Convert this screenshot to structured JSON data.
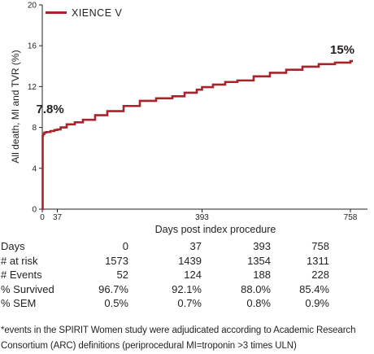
{
  "chart_data": {
    "type": "line",
    "title": "",
    "xlabel": "Days post index procedure",
    "ylabel": "All death, MI and TVR (%)",
    "xlim": [
      0,
      800
    ],
    "ylim": [
      0,
      20
    ],
    "y_ticks": [
      "0",
      "4",
      "8",
      "12",
      "16",
      "20"
    ],
    "x_ticks": [
      {
        "value": 0,
        "label": "0"
      },
      {
        "value": 37,
        "label": "37"
      },
      {
        "value": 393,
        "label": "393"
      },
      {
        "value": 758,
        "label": "758"
      }
    ],
    "legend": {
      "position": "top-left",
      "entries": [
        "XIENCE V"
      ]
    },
    "series": [
      {
        "name": "XIENCE V",
        "color": "#a8242a",
        "step": true,
        "x": [
          0,
          1,
          2,
          5,
          10,
          20,
          30,
          37,
          45,
          60,
          80,
          100,
          130,
          160,
          200,
          240,
          280,
          320,
          350,
          380,
          393,
          420,
          450,
          480,
          520,
          560,
          600,
          640,
          680,
          720,
          758
        ],
        "y": [
          0,
          7.2,
          7.35,
          7.5,
          7.55,
          7.65,
          7.75,
          7.8,
          8.0,
          8.3,
          8.5,
          8.75,
          9.2,
          9.6,
          10.1,
          10.6,
          10.85,
          11.05,
          11.4,
          11.7,
          11.95,
          12.2,
          12.45,
          12.6,
          13.0,
          13.35,
          13.65,
          13.95,
          14.2,
          14.35,
          14.5
        ]
      }
    ],
    "annotations": [
      {
        "text": "7.8%",
        "x": 37,
        "y": 7.8
      },
      {
        "text": "15%",
        "x": 758,
        "y": 14.5
      }
    ]
  },
  "table": {
    "columns": [
      "Days",
      "0",
      "37",
      "393",
      "758"
    ],
    "rows": [
      {
        "label": "# at risk",
        "values": [
          "1573",
          "1439",
          "1354",
          "1311"
        ]
      },
      {
        "label": "# Events",
        "values": [
          "52",
          "124",
          "188",
          "228"
        ]
      },
      {
        "label": "% Survived",
        "values": [
          "96.7%",
          "92.1%",
          "88.0%",
          "85.4%"
        ]
      },
      {
        "label": "% SEM",
        "values": [
          "0.5%",
          "0.7%",
          "0.8%",
          "0.9%"
        ]
      }
    ]
  },
  "footnote": {
    "line1": "*events in the SPIRIT Women study were adjudicated according to Academic Research",
    "line2": "Consortium (ARC) definitions (periprocedural MI=troponin >3 times ULN)"
  }
}
